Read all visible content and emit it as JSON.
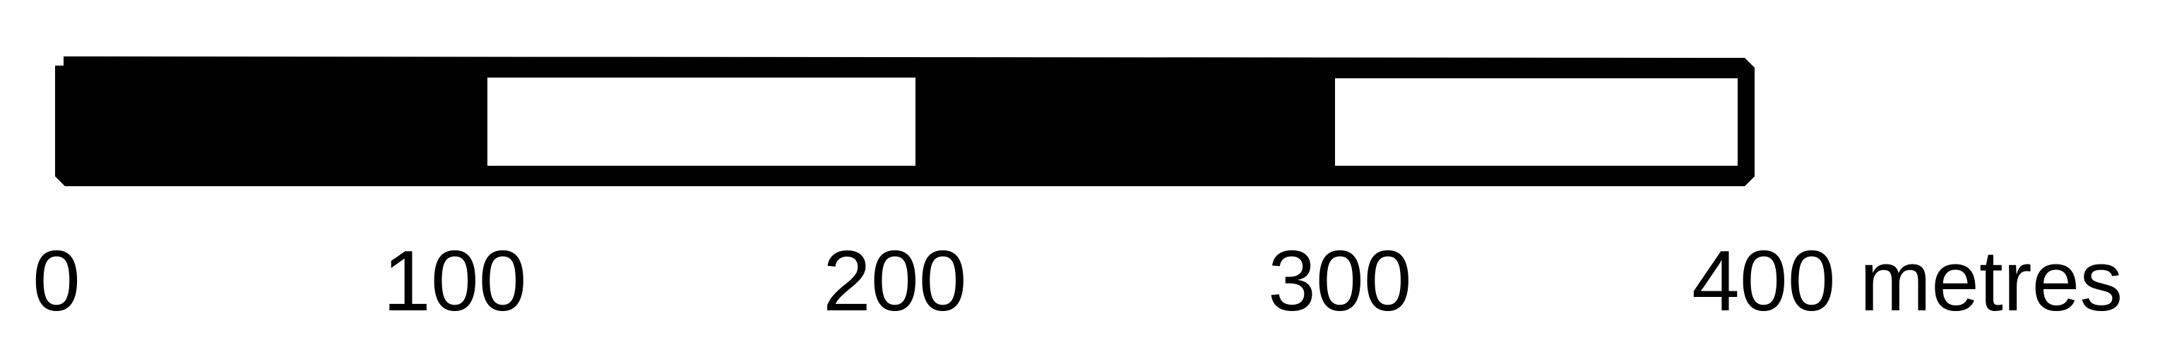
{
  "scale_bar": {
    "unit": "metres",
    "segments": [
      {
        "from": 0,
        "to": 100,
        "fill": "black"
      },
      {
        "from": 100,
        "to": 200,
        "fill": "white"
      },
      {
        "from": 200,
        "to": 300,
        "fill": "black"
      },
      {
        "from": 300,
        "to": 400,
        "fill": "white"
      }
    ],
    "labels": [
      "0",
      "100",
      "200",
      "300",
      "400 metres"
    ],
    "colors": {
      "ink": "#000000",
      "paper": "#ffffff"
    }
  }
}
